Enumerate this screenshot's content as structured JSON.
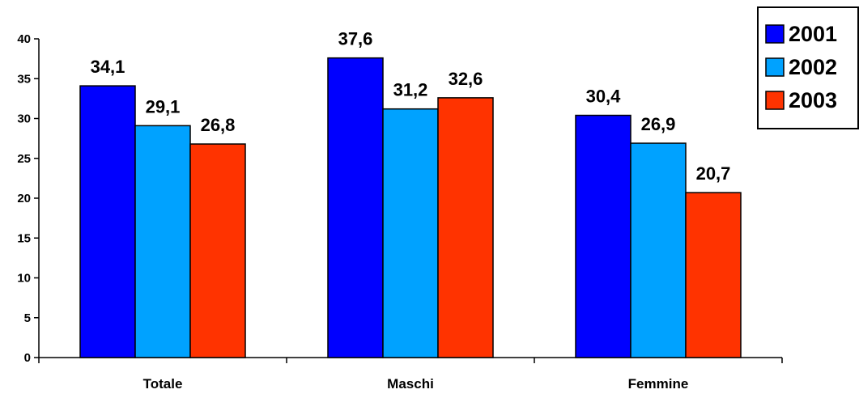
{
  "chart_data": {
    "type": "bar",
    "title": "",
    "xlabel": "",
    "ylabel": "",
    "categories": [
      "Totale",
      "Maschi",
      "Femmine"
    ],
    "series": [
      {
        "name": "2001",
        "values": [
          34.1,
          37.6,
          30.4
        ],
        "labels": [
          "34,1",
          "37,6",
          "30,4"
        ],
        "color": "#0000ff"
      },
      {
        "name": "2002",
        "values": [
          29.1,
          31.2,
          26.9
        ],
        "labels": [
          "29,1",
          "31,2",
          "26,9"
        ],
        "color": "#00a2ff"
      },
      {
        "name": "2003",
        "values": [
          26.8,
          32.6,
          20.7
        ],
        "labels": [
          "26,8",
          "32,6",
          "20,7"
        ],
        "color": "#ff3300"
      }
    ],
    "ylim": [
      0,
      40
    ],
    "yticks": [
      0,
      5,
      10,
      15,
      20,
      25,
      30,
      35,
      40
    ],
    "grid": false,
    "legend_position": "top-right"
  }
}
